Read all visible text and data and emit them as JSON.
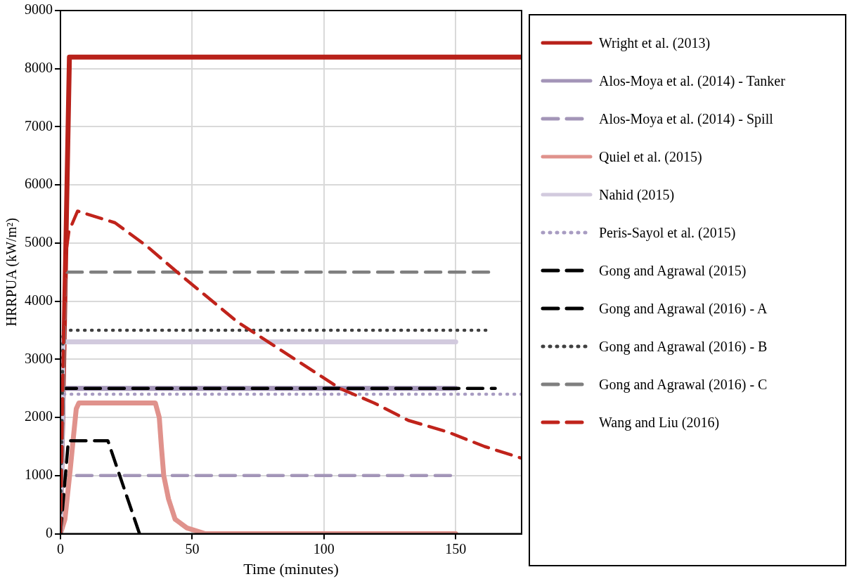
{
  "chart_data": {
    "type": "line",
    "xlabel": "Time (minutes)",
    "ylabel": "HRRPUA (kW/m²)",
    "xlim": [
      0,
      175
    ],
    "xticks": [
      0,
      50,
      100,
      150
    ],
    "ylim": [
      0,
      9000
    ],
    "yticks": [
      0,
      1000,
      2000,
      3000,
      4000,
      5000,
      6000,
      7000,
      8000,
      9000
    ],
    "grid": true,
    "legend": "right",
    "marker": "none",
    "series": [
      {
        "name": "Wright et al. (2013)",
        "color": "#b8211a",
        "line_style": "solid",
        "x": [
          0,
          3.4,
          175
        ],
        "values": [
          0,
          8200,
          8200
        ]
      },
      {
        "name": "Alos-Moya et al. (2014) - Tanker",
        "color": "#a395b8",
        "line_style": "solid",
        "x": [
          0,
          1,
          150
        ],
        "values": [
          0,
          2500,
          2500
        ]
      },
      {
        "name": "Alos-Moya et al. (2014) - Spill",
        "color": "#a395b8",
        "line_style": "dashed",
        "x": [
          0,
          1,
          150
        ],
        "values": [
          0,
          1000,
          1000
        ]
      },
      {
        "name": "Quiel et al. (2015)",
        "color": "#e0928c",
        "line_style": "solid",
        "x": [
          0,
          1.7,
          3.7,
          5,
          6,
          7,
          36,
          37.5,
          38.3,
          39.2,
          41,
          43.5,
          48,
          55,
          60,
          150
        ],
        "values": [
          0,
          250,
          1100,
          1700,
          2150,
          2250,
          2250,
          2000,
          1500,
          1000,
          600,
          250,
          100,
          0,
          0,
          0
        ]
      },
      {
        "name": "Nahid (2015)",
        "color": "#d2cade",
        "line_style": "solid",
        "x": [
          0,
          1,
          150
        ],
        "values": [
          0,
          3300,
          3300
        ]
      },
      {
        "name": "Peris-Sayol et al. (2015)",
        "color": "#a89cc2",
        "line_style": "dotted",
        "x": [
          0,
          1,
          175
        ],
        "values": [
          0,
          2400,
          2400
        ]
      },
      {
        "name": "Gong and Agrawal (2015)",
        "color": "#000000",
        "line_style": "dashed",
        "x": [
          0,
          3,
          18,
          30
        ],
        "values": [
          0,
          1600,
          1600,
          0
        ]
      },
      {
        "name": "Gong and Agrawal (2016) - A",
        "color": "#000000",
        "line_style": "dashed",
        "x": [
          0,
          1,
          165
        ],
        "values": [
          0,
          2500,
          2500
        ]
      },
      {
        "name": "Gong and Agrawal (2016) - B",
        "color": "#404040",
        "line_style": "dotted",
        "x": [
          0,
          1,
          162
        ],
        "values": [
          0,
          3500,
          3500
        ]
      },
      {
        "name": "Gong and Agrawal (2016) - C",
        "color": "#7f7f7f",
        "line_style": "dashed",
        "x": [
          0,
          2,
          163
        ],
        "values": [
          0,
          4500,
          4500
        ]
      },
      {
        "name": "Wang and Liu (2016)",
        "color": "#c0231b",
        "line_style": "dashed",
        "x": [
          0,
          1,
          2,
          3.2,
          6.5,
          20.7,
          32.7,
          44.3,
          67,
          106,
          119,
          132,
          147,
          161,
          175
        ],
        "values": [
          0,
          3000,
          4800,
          5200,
          5550,
          5350,
          4950,
          4500,
          3650,
          2500,
          2250,
          1950,
          1750,
          1500,
          1300
        ]
      }
    ]
  }
}
